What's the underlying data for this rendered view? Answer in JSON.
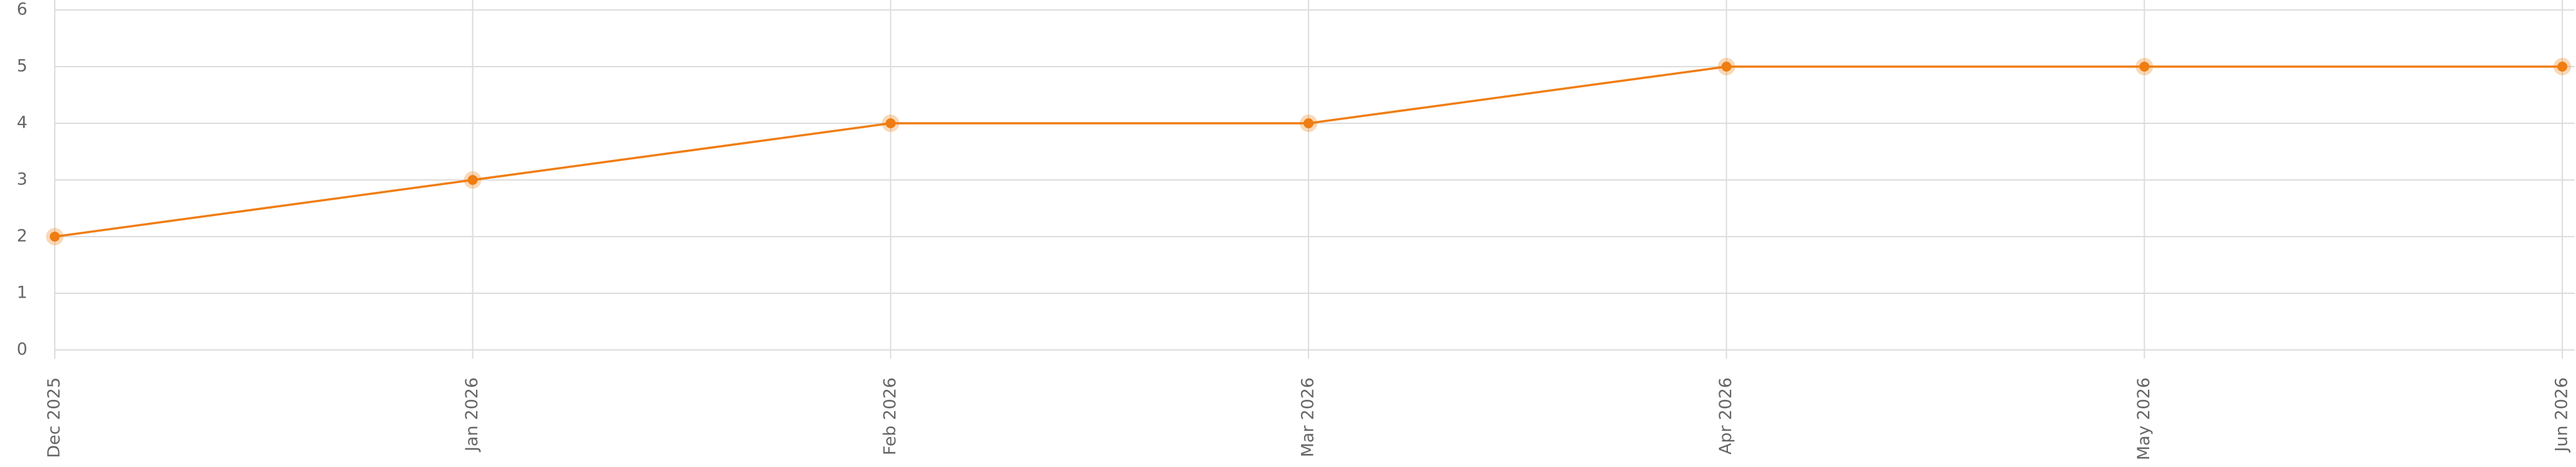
{
  "chart_data": {
    "type": "line",
    "categories": [
      "Dec 2025",
      "Jan 2026",
      "Feb 2026",
      "Mar 2026",
      "Apr 2026",
      "May 2026",
      "Jun 2026"
    ],
    "values": [
      2,
      3,
      4,
      4,
      5,
      5,
      5
    ],
    "color": "#f07d12",
    "ylim": [
      0,
      6
    ],
    "yticks": [
      0,
      1,
      2,
      3,
      4,
      5,
      6
    ],
    "grid": true
  }
}
